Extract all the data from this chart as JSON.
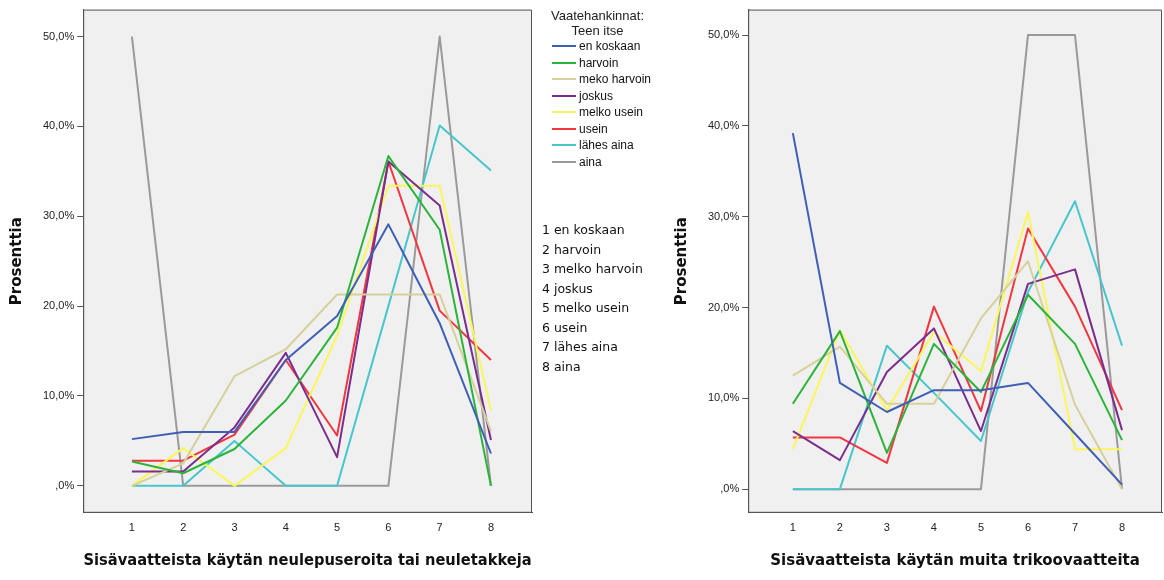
{
  "chart_data": [
    {
      "type": "line",
      "xlabel": "Sisävaatteista käytän neulepuseroita tai neuletakkeja",
      "ylabel": "Prosenttia",
      "legend_title": "Vaatehankinnat: Teen itse",
      "legend": "right",
      "x": [
        1,
        2,
        3,
        4,
        5,
        6,
        7,
        8
      ],
      "xlim": [
        0.05,
        8.8
      ],
      "xticks": [
        1,
        2,
        3,
        4,
        5,
        6,
        7,
        8
      ],
      "ylim": [
        -3,
        53
      ],
      "yticks": [
        {
          "value": 0,
          "label": ",0%"
        },
        {
          "value": 10,
          "label": "10,0%"
        },
        {
          "value": 20,
          "label": "20,0%"
        },
        {
          "value": 30,
          "label": "30,0%"
        },
        {
          "value": 40,
          "label": "40,0%"
        },
        {
          "value": 50,
          "label": "50,0%"
        }
      ],
      "marker": "none",
      "annotations": [
        "1 en koskaan",
        "2 harvoin",
        "3 melko harvoin",
        "4 joskus",
        "5 melko usein",
        "6 usein",
        "7 lähes aina",
        "8 aina"
      ],
      "series": [
        {
          "name": "en koskaan",
          "color": "#3f5fb5",
          "values": [
            5.2,
            6.0,
            6.0,
            14.0,
            18.9,
            29.1,
            18.1,
            3.6
          ]
        },
        {
          "name": "harvoin",
          "color": "#2bb43a",
          "values": [
            2.7,
            1.4,
            4.1,
            9.5,
            17.6,
            36.7,
            28.5,
            0
          ]
        },
        {
          "name": "meko harvoin",
          "color": "#d6d19a",
          "values": [
            0,
            2.5,
            12.2,
            15.2,
            21.3,
            21.3,
            21.3,
            6.1
          ]
        },
        {
          "name": "joskus",
          "color": "#7b2d8e",
          "values": [
            1.6,
            1.6,
            6.5,
            14.8,
            3.2,
            36.1,
            31.2,
            5.1
          ]
        },
        {
          "name": "melko usein",
          "color": "#fbf659",
          "values": [
            0,
            4.2,
            0,
            4.2,
            16.7,
            33.4,
            33.4,
            8.4
          ]
        },
        {
          "name": "usein",
          "color": "#f2363f",
          "values": [
            2.8,
            2.8,
            5.7,
            14.0,
            5.6,
            36.1,
            19.5,
            14.0
          ]
        },
        {
          "name": "lähes aina",
          "color": "#47c6cb",
          "values": [
            0,
            0,
            5.0,
            0,
            0,
            20.0,
            40.1,
            35.1
          ]
        },
        {
          "name": "aina",
          "color": "#9a9a9a",
          "values": [
            50,
            0,
            0,
            0,
            0,
            0,
            50,
            0
          ]
        }
      ]
    },
    {
      "type": "line",
      "xlabel": "Sisävaatteista käytän muita trikoovaatteita",
      "ylabel": "Prosenttia",
      "x": [
        1,
        2,
        3,
        4,
        5,
        6,
        7,
        8
      ],
      "xlim": [
        0.05,
        8.85
      ],
      "xticks": [
        1,
        2,
        3,
        4,
        5,
        6,
        7,
        8
      ],
      "ylim": [
        -2.6,
        52.8
      ],
      "yticks": [
        {
          "value": 0,
          "label": ",0%"
        },
        {
          "value": 10,
          "label": "10,0%"
        },
        {
          "value": 20,
          "label": "20,0%"
        },
        {
          "value": 30,
          "label": "30,0%"
        },
        {
          "value": 40,
          "label": "40,0%"
        },
        {
          "value": 50,
          "label": "50,0%"
        }
      ],
      "marker": "none",
      "series": [
        {
          "color": "#3f5fb5",
          "values": [
            39.2,
            11.7,
            8.5,
            10.9,
            10.9,
            11.7,
            6.1,
            0.5
          ]
        },
        {
          "color": "#2bb43a",
          "values": [
            9.4,
            17.4,
            4.0,
            16.0,
            10.7,
            21.4,
            16.0,
            5.4
          ]
        },
        {
          "color": "#d6d19a",
          "values": [
            12.5,
            15.7,
            9.4,
            9.4,
            18.8,
            25.1,
            9.3,
            0
          ]
        },
        {
          "color": "#7b2d8e",
          "values": [
            6.4,
            3.2,
            12.9,
            17.7,
            6.4,
            22.6,
            24.2,
            6.5
          ]
        },
        {
          "color": "#fbf659",
          "values": [
            4.4,
            17.5,
            8.7,
            17.3,
            13.0,
            30.5,
            4.4,
            4.4
          ]
        },
        {
          "color": "#f2363f",
          "values": [
            5.7,
            5.7,
            2.9,
            20.1,
            8.6,
            28.7,
            20.1,
            8.7
          ]
        },
        {
          "color": "#47c6cb",
          "values": [
            0,
            0,
            15.8,
            10.6,
            5.3,
            21.7,
            31.7,
            15.8
          ]
        },
        {
          "color": "#9a9a9a",
          "values": [
            0,
            0,
            0,
            0,
            0,
            50,
            50,
            0
          ]
        }
      ]
    }
  ]
}
